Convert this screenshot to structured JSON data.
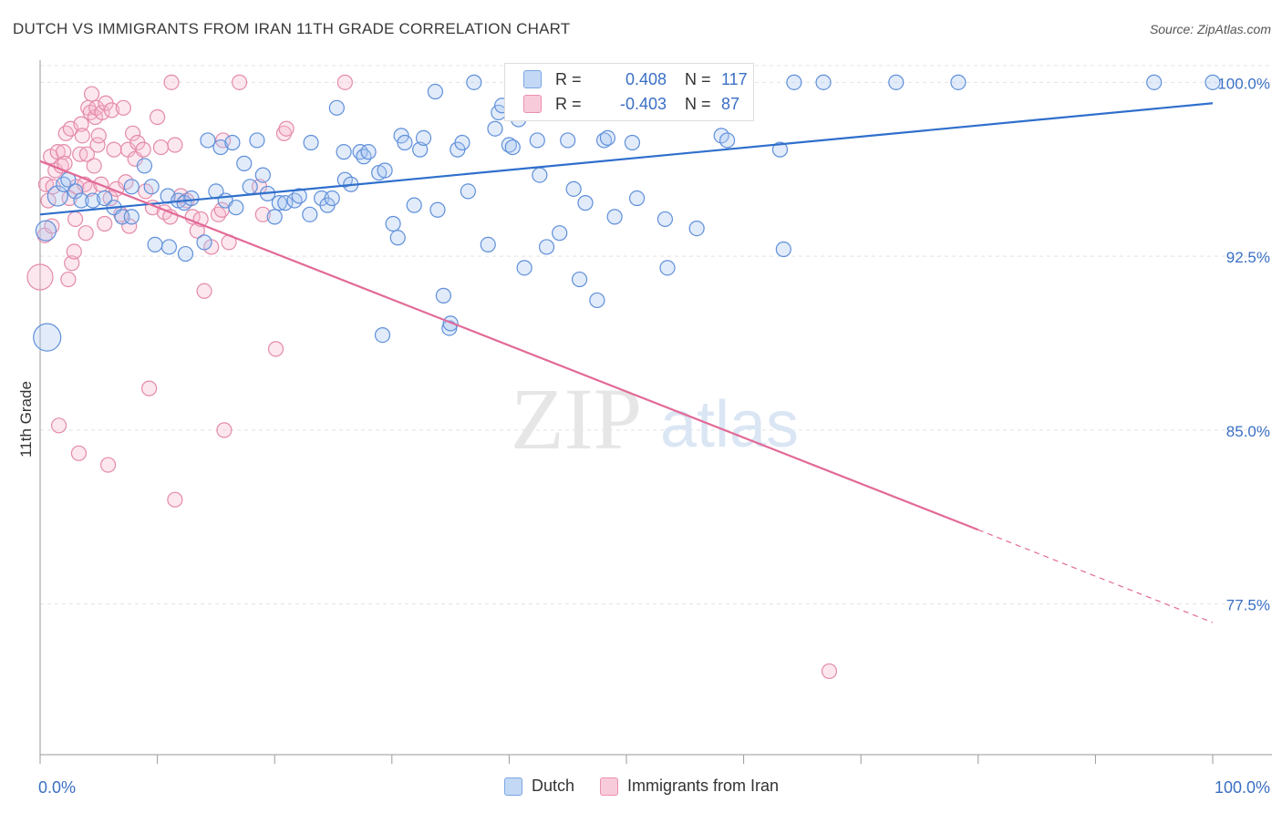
{
  "title": "DUTCH VS IMMIGRANTS FROM IRAN 11TH GRADE CORRELATION CHART",
  "source": "Source: ZipAtlas.com",
  "watermark": {
    "zip": "ZIP",
    "atlas": "atlas"
  },
  "colors": {
    "blue": "#6a9be0",
    "pink": "#ec8fb0",
    "blue_line": "#2f6fcc",
    "pink_line": "#e26a97",
    "tick_text": "#3a6fc4"
  },
  "stats": {
    "r_label": "R =",
    "n_label": "N =",
    "blue": {
      "r": "0.408",
      "n": "117"
    },
    "pink": {
      "r": "-0.403",
      "n": "87"
    }
  },
  "legend": {
    "blue_label": "Dutch",
    "pink_label": "Immigrants from Iran"
  },
  "chart_data": {
    "type": "scatter",
    "title": "DUTCH VS IMMIGRANTS FROM IRAN 11TH GRADE CORRELATION CHART",
    "xlabel": "",
    "ylabel": "11th Grade",
    "xlim": [
      0,
      100
    ],
    "ylim": [
      71.0,
      100.8
    ],
    "x_tick_labels": {
      "min": "0.0%",
      "max": "100.0%"
    },
    "y_ticks": [
      {
        "value": 100.0,
        "label": "100.0%"
      },
      {
        "value": 92.5,
        "label": "92.5%"
      },
      {
        "value": 85.0,
        "label": "85.0%"
      },
      {
        "value": 77.5,
        "label": "77.5%"
      }
    ],
    "grid": true,
    "legend_position": "bottom-center",
    "series": [
      {
        "name": "Dutch",
        "color": "#6a9be0",
        "trend": {
          "x0": 0,
          "y0": 94.3,
          "x1": 100,
          "y1": 99.1
        },
        "points": [
          [
            0.5,
            93.6,
            11
          ],
          [
            0.6,
            89.0,
            15
          ],
          [
            1.5,
            95.1,
            11
          ],
          [
            2.0,
            95.6,
            8
          ],
          [
            2.4,
            95.8,
            8
          ],
          [
            3.0,
            95.3,
            8
          ],
          [
            3.5,
            94.9,
            8
          ],
          [
            4.5,
            94.9,
            8
          ],
          [
            5.5,
            95.0,
            8
          ],
          [
            6.3,
            94.6,
            8
          ],
          [
            7.0,
            94.2,
            8
          ],
          [
            7.8,
            94.2,
            8
          ],
          [
            7.8,
            95.5,
            8
          ],
          [
            8.9,
            96.4,
            8
          ],
          [
            9.5,
            95.5,
            8
          ],
          [
            9.8,
            93.0,
            8
          ],
          [
            10.9,
            95.1,
            8
          ],
          [
            11.0,
            92.9,
            8
          ],
          [
            11.8,
            94.9,
            8
          ],
          [
            12.3,
            94.8,
            8
          ],
          [
            12.4,
            92.6,
            8
          ],
          [
            12.9,
            95.0,
            8
          ],
          [
            14.0,
            93.1,
            8
          ],
          [
            14.3,
            97.5,
            8
          ],
          [
            15.0,
            95.3,
            8
          ],
          [
            15.4,
            97.2,
            8
          ],
          [
            15.8,
            94.9,
            8
          ],
          [
            16.4,
            97.4,
            8
          ],
          [
            16.7,
            94.6,
            8
          ],
          [
            17.4,
            96.5,
            8
          ],
          [
            17.9,
            95.5,
            8
          ],
          [
            18.5,
            97.5,
            8
          ],
          [
            19.0,
            96.0,
            8
          ],
          [
            19.4,
            95.2,
            8
          ],
          [
            20.0,
            94.2,
            8
          ],
          [
            20.4,
            94.8,
            8
          ],
          [
            20.9,
            94.8,
            8
          ],
          [
            21.7,
            94.9,
            8
          ],
          [
            22.1,
            95.1,
            8
          ],
          [
            23.0,
            94.3,
            8
          ],
          [
            23.1,
            97.4,
            8
          ],
          [
            24.0,
            95.0,
            8
          ],
          [
            24.5,
            94.7,
            8
          ],
          [
            24.9,
            95.0,
            8
          ],
          [
            25.3,
            98.9,
            8
          ],
          [
            25.9,
            97.0,
            8
          ],
          [
            26.0,
            95.8,
            8
          ],
          [
            26.5,
            95.6,
            8
          ],
          [
            27.3,
            97.0,
            8
          ],
          [
            27.6,
            96.8,
            8
          ],
          [
            28.0,
            97.0,
            8
          ],
          [
            28.9,
            96.1,
            8
          ],
          [
            29.2,
            89.1,
            8
          ],
          [
            29.4,
            96.2,
            8
          ],
          [
            30.1,
            93.9,
            8
          ],
          [
            30.5,
            93.3,
            8
          ],
          [
            30.8,
            97.7,
            8
          ],
          [
            31.1,
            97.4,
            8
          ],
          [
            31.9,
            94.7,
            8
          ],
          [
            32.4,
            97.1,
            8
          ],
          [
            32.7,
            97.6,
            8
          ],
          [
            33.7,
            99.6,
            8
          ],
          [
            33.9,
            94.5,
            8
          ],
          [
            34.4,
            90.8,
            8
          ],
          [
            34.9,
            89.4,
            8
          ],
          [
            35.0,
            89.6,
            8
          ],
          [
            35.6,
            97.1,
            8
          ],
          [
            36.0,
            97.4,
            8
          ],
          [
            36.5,
            95.3,
            8
          ],
          [
            37.0,
            100.0,
            8
          ],
          [
            38.2,
            93.0,
            8
          ],
          [
            38.8,
            98.0,
            8
          ],
          [
            39.1,
            98.7,
            8
          ],
          [
            39.4,
            99.0,
            8
          ],
          [
            40.0,
            97.3,
            8
          ],
          [
            40.3,
            97.2,
            8
          ],
          [
            40.8,
            98.4,
            8
          ],
          [
            41.3,
            92.0,
            8
          ],
          [
            42.0,
            100.0,
            8
          ],
          [
            42.4,
            97.5,
            8
          ],
          [
            42.6,
            96.0,
            8
          ],
          [
            43.2,
            92.9,
            8
          ],
          [
            43.8,
            100.0,
            8
          ],
          [
            44.3,
            93.5,
            8
          ],
          [
            45.0,
            97.5,
            8
          ],
          [
            45.5,
            95.4,
            8
          ],
          [
            46.0,
            91.5,
            8
          ],
          [
            46.5,
            94.8,
            8
          ],
          [
            47.5,
            90.6,
            8
          ],
          [
            48.1,
            97.5,
            8
          ],
          [
            48.4,
            97.6,
            8
          ],
          [
            49.0,
            94.2,
            8
          ],
          [
            50.0,
            100.0,
            8
          ],
          [
            50.5,
            97.4,
            8
          ],
          [
            50.9,
            95.0,
            8
          ],
          [
            51.5,
            99.0,
            8
          ],
          [
            52.0,
            99.9,
            8
          ],
          [
            53.3,
            94.1,
            8
          ],
          [
            53.5,
            92.0,
            8
          ],
          [
            54.2,
            99.9,
            8
          ],
          [
            54.8,
            99.6,
            8
          ],
          [
            55.3,
            98.7,
            8
          ],
          [
            56.0,
            93.7,
            8
          ],
          [
            58.1,
            97.7,
            8
          ],
          [
            58.6,
            97.5,
            8
          ],
          [
            60.0,
            100.0,
            8
          ],
          [
            63.1,
            97.1,
            8
          ],
          [
            63.4,
            92.8,
            8
          ],
          [
            64.3,
            100.0,
            8
          ],
          [
            66.8,
            100.0,
            8
          ],
          [
            73.0,
            100.0,
            8
          ],
          [
            78.3,
            100.0,
            8
          ],
          [
            95.0,
            100.0,
            8
          ],
          [
            100.0,
            100.0,
            8
          ]
        ]
      },
      {
        "name": "Immigrants from Iran",
        "color": "#ec8fb0",
        "trend": {
          "x0": 0,
          "y0": 96.6,
          "x1": 80,
          "y1": 80.7,
          "dashed_to": {
            "x": 100,
            "y": 76.7
          }
        },
        "points": [
          [
            0.0,
            91.6,
            14
          ],
          [
            0.4,
            93.4,
            8
          ],
          [
            0.5,
            95.6,
            8
          ],
          [
            0.7,
            94.9,
            8
          ],
          [
            0.9,
            96.8,
            8
          ],
          [
            1.0,
            93.8,
            8
          ],
          [
            1.1,
            95.5,
            8
          ],
          [
            1.3,
            96.2,
            8
          ],
          [
            1.5,
            97.0,
            8
          ],
          [
            1.6,
            85.2,
            8
          ],
          [
            1.8,
            96.4,
            8
          ],
          [
            2.0,
            97.0,
            8
          ],
          [
            2.1,
            96.5,
            8
          ],
          [
            2.2,
            97.8,
            8
          ],
          [
            2.4,
            91.5,
            8
          ],
          [
            2.5,
            95.0,
            8
          ],
          [
            2.6,
            98.0,
            8
          ],
          [
            2.7,
            92.2,
            8
          ],
          [
            2.9,
            92.7,
            8
          ],
          [
            3.0,
            94.1,
            8
          ],
          [
            3.1,
            95.5,
            8
          ],
          [
            3.3,
            84.0,
            8
          ],
          [
            3.4,
            96.9,
            8
          ],
          [
            3.5,
            98.2,
            8
          ],
          [
            3.6,
            97.7,
            8
          ],
          [
            3.8,
            95.6,
            8
          ],
          [
            3.9,
            93.5,
            8
          ],
          [
            4.0,
            96.9,
            8
          ],
          [
            4.1,
            98.9,
            8
          ],
          [
            4.2,
            95.4,
            8
          ],
          [
            4.3,
            98.7,
            8
          ],
          [
            4.4,
            99.5,
            8
          ],
          [
            4.6,
            96.4,
            8
          ],
          [
            4.7,
            98.5,
            8
          ],
          [
            4.8,
            98.9,
            8
          ],
          [
            4.9,
            97.3,
            8
          ],
          [
            5.0,
            97.7,
            8
          ],
          [
            5.2,
            95.6,
            8
          ],
          [
            5.3,
            98.7,
            8
          ],
          [
            5.5,
            93.9,
            8
          ],
          [
            5.6,
            99.1,
            8
          ],
          [
            5.8,
            83.5,
            8
          ],
          [
            6.0,
            95.0,
            8
          ],
          [
            6.1,
            98.8,
            8
          ],
          [
            6.3,
            97.1,
            8
          ],
          [
            6.5,
            95.4,
            8
          ],
          [
            6.9,
            94.3,
            8
          ],
          [
            7.1,
            98.9,
            8
          ],
          [
            7.3,
            95.7,
            8
          ],
          [
            7.5,
            97.1,
            8
          ],
          [
            7.6,
            93.8,
            8
          ],
          [
            7.9,
            97.8,
            8
          ],
          [
            8.1,
            96.7,
            8
          ],
          [
            8.3,
            97.4,
            8
          ],
          [
            8.8,
            97.1,
            8
          ],
          [
            9.0,
            95.3,
            8
          ],
          [
            9.3,
            86.8,
            8
          ],
          [
            9.6,
            94.6,
            8
          ],
          [
            10.0,
            98.5,
            8
          ],
          [
            10.3,
            97.2,
            8
          ],
          [
            10.6,
            94.4,
            8
          ],
          [
            11.1,
            94.2,
            8
          ],
          [
            11.2,
            100.0,
            8
          ],
          [
            11.5,
            97.3,
            8
          ],
          [
            12.0,
            95.1,
            8
          ],
          [
            11.5,
            82.0,
            8
          ],
          [
            12.5,
            94.9,
            8
          ],
          [
            13.0,
            94.2,
            8
          ],
          [
            13.4,
            93.6,
            8
          ],
          [
            13.7,
            94.1,
            8
          ],
          [
            14.0,
            91.0,
            8
          ],
          [
            14.6,
            92.9,
            8
          ],
          [
            15.2,
            94.3,
            8
          ],
          [
            15.5,
            94.5,
            8
          ],
          [
            15.6,
            97.5,
            8
          ],
          [
            15.7,
            85.0,
            8
          ],
          [
            16.1,
            93.1,
            8
          ],
          [
            17.0,
            100.0,
            8
          ],
          [
            18.7,
            95.5,
            8
          ],
          [
            19.0,
            94.3,
            8
          ],
          [
            20.1,
            88.5,
            8
          ],
          [
            20.8,
            97.8,
            8
          ],
          [
            21.0,
            98.0,
            8
          ],
          [
            26.0,
            100.0,
            8
          ],
          [
            67.3,
            74.6,
            8
          ]
        ]
      }
    ]
  }
}
